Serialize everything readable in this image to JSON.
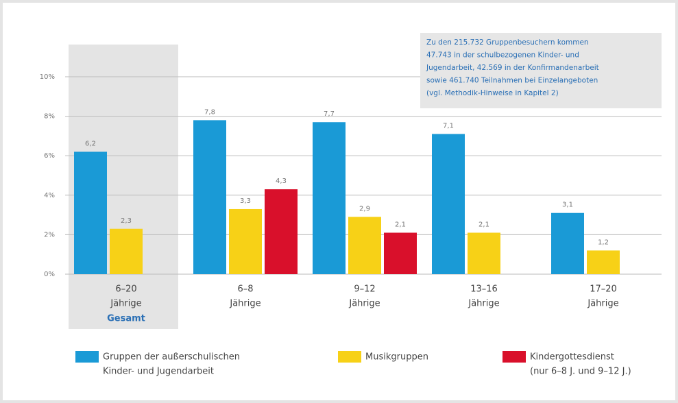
{
  "chart_data": {
    "type": "bar",
    "categories": [
      [
        "6–20",
        "Jährige"
      ],
      [
        "6–8",
        "Jährige"
      ],
      [
        "9–12",
        "Jährige"
      ],
      [
        "13–16",
        "Jährige"
      ],
      [
        "17–20",
        "Jährige"
      ]
    ],
    "highlight_label": "Gesamt",
    "series": [
      {
        "name": [
          "Gruppen der außerschulischen",
          "Kinder- und Jugendarbeit"
        ],
        "color": "#1a9ad6",
        "values": [
          6.2,
          7.8,
          7.7,
          7.1,
          3.1
        ],
        "value_labels": [
          "6,2",
          "7,8",
          "7,7",
          "7,1",
          "3,1"
        ]
      },
      {
        "name": [
          "Musikgruppen"
        ],
        "color": "#f7d117",
        "values": [
          2.3,
          3.3,
          2.9,
          2.1,
          1.2
        ],
        "value_labels": [
          "2,3",
          "3,3",
          "2,9",
          "2,1",
          "1,2"
        ]
      },
      {
        "name": [
          "Kindergottesdienst",
          "(nur 6–8 J. und 9–12 J.)"
        ],
        "color": "#d9102b",
        "values": [
          null,
          4.3,
          2.1,
          null,
          null
        ],
        "value_labels": [
          null,
          "4,3",
          "2,1",
          null,
          null
        ]
      }
    ],
    "ylim": [
      0,
      10
    ],
    "yticks": [
      {
        "value": 0,
        "label": "0%"
      },
      {
        "value": 2,
        "label": "2%"
      },
      {
        "value": 4,
        "label": "4%"
      },
      {
        "value": 6,
        "label": "6%"
      },
      {
        "value": 8,
        "label": "8%"
      },
      {
        "value": 10,
        "label": "10%"
      }
    ],
    "grid": true,
    "annotation": [
      "Zu den 215.732 Gruppenbesuchern kommen",
      "47.743 in der schulbezogenen Kinder- und",
      "Jugendarbeit, 42.569 in der Konfirmandenarbeit",
      "sowie 461.740 Teilnahmen bei Einzelangeboten",
      "(vgl. Methodik-Hinweise in Kapitel 2)"
    ]
  }
}
